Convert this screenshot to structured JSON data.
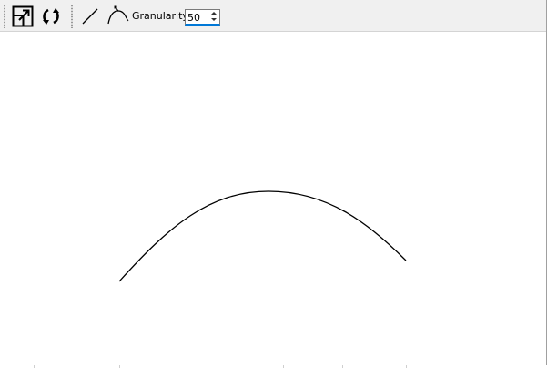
{
  "toolbar": {
    "buttons": [
      {
        "name": "fit-to-window",
        "icon": "resize-window-icon"
      },
      {
        "name": "reset-view",
        "icon": "refresh-icon"
      },
      {
        "name": "line-tool",
        "icon": "line-icon"
      },
      {
        "name": "bezier-tool",
        "icon": "bezier-curve-icon"
      }
    ],
    "granularity_label": "Granularity:",
    "granularity_value": "50"
  },
  "canvas": {
    "background": "#ffffff",
    "curve": {
      "type": "bezier",
      "stroke": "#000000"
    }
  },
  "colors": {
    "toolbar_bg": "#f0f0f0",
    "focus_accent": "#0078d7"
  }
}
